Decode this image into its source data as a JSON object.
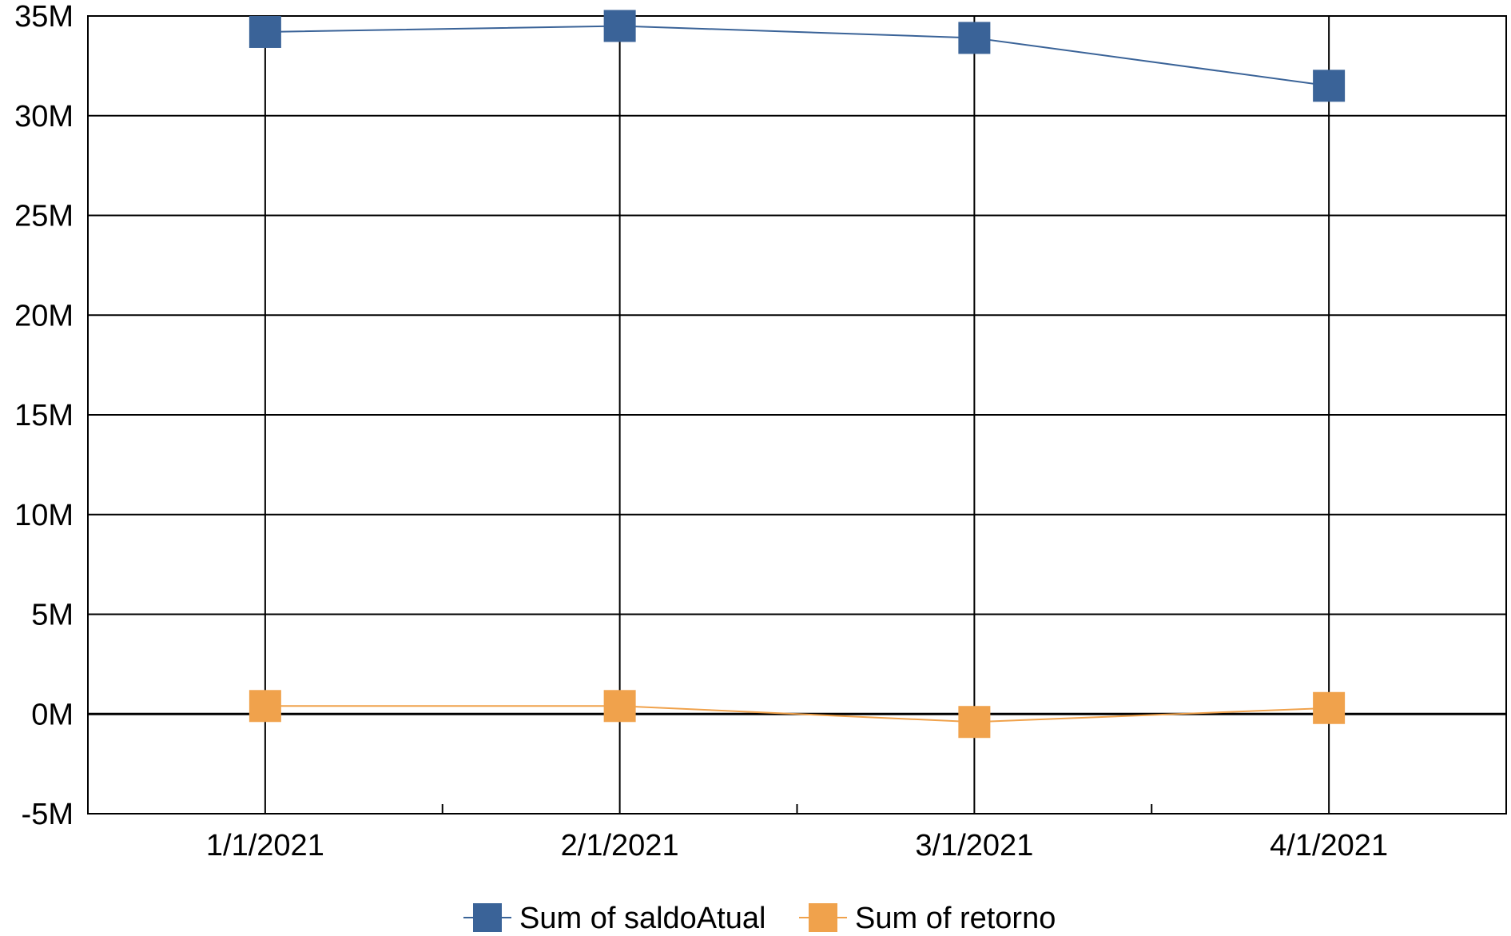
{
  "chart_data": {
    "type": "line",
    "title": "",
    "xlabel": "",
    "ylabel": "",
    "categories": [
      "1/1/2021",
      "2/1/2021",
      "3/1/2021",
      "4/1/2021"
    ],
    "ylim": [
      -5000000,
      35000000
    ],
    "y_ticks": [
      {
        "value": 35000000,
        "label": "35M"
      },
      {
        "value": 30000000,
        "label": "30M"
      },
      {
        "value": 25000000,
        "label": "25M"
      },
      {
        "value": 20000000,
        "label": "20M"
      },
      {
        "value": 15000000,
        "label": "15M"
      },
      {
        "value": 10000000,
        "label": "10M"
      },
      {
        "value": 5000000,
        "label": "5M"
      },
      {
        "value": 0,
        "label": "0M"
      },
      {
        "value": -5000000,
        "label": "-5M"
      }
    ],
    "grid": true,
    "legend_position": "bottom",
    "series": [
      {
        "name": "Sum of saldoAtual",
        "color": "#3A6398",
        "marker": "square",
        "values": [
          34200000,
          34500000,
          33900000,
          31500000
        ]
      },
      {
        "name": "Sum of retorno",
        "color": "#F0A24C",
        "marker": "square",
        "values": [
          400000,
          400000,
          -400000,
          300000
        ]
      }
    ]
  }
}
